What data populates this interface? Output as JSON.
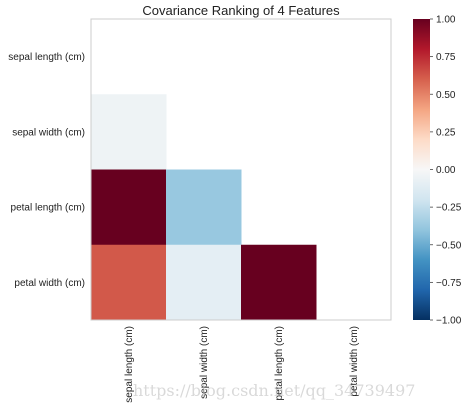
{
  "chart_data": {
    "type": "heatmap",
    "title": "Covariance Ranking of 4 Features",
    "features": [
      "sepal length (cm)",
      "sepal width (cm)",
      "petal length (cm)",
      "petal width (cm)"
    ],
    "cells": [
      {
        "row": 1,
        "col": 0,
        "value": -0.05
      },
      {
        "row": 2,
        "col": 0,
        "value": 1.0
      },
      {
        "row": 2,
        "col": 1,
        "value": -0.38
      },
      {
        "row": 3,
        "col": 0,
        "value": 0.62
      },
      {
        "row": 3,
        "col": 1,
        "value": -0.1
      },
      {
        "row": 3,
        "col": 2,
        "value": 1.0
      }
    ],
    "colorbar": {
      "min": -1.0,
      "max": 1.0,
      "ticks": [
        1.0,
        0.75,
        0.5,
        0.25,
        0.0,
        -0.25,
        -0.5,
        -0.75,
        -1.0
      ],
      "tick_labels": [
        "1.00",
        "0.75",
        "0.50",
        "0.25",
        "0.00",
        "−0.25",
        "−0.50",
        "−0.75",
        "−1.00"
      ]
    },
    "colormap": {
      "name": "RdBu_r",
      "stops": [
        "#053061",
        "#2166ac",
        "#4393c3",
        "#92c5de",
        "#d1e5f0",
        "#f7f7f7",
        "#fddbc7",
        "#f4a582",
        "#d6604d",
        "#b2182b",
        "#67001f"
      ]
    },
    "grid": false
  },
  "watermark": "https://blog.csdn.net/qq_34739497"
}
